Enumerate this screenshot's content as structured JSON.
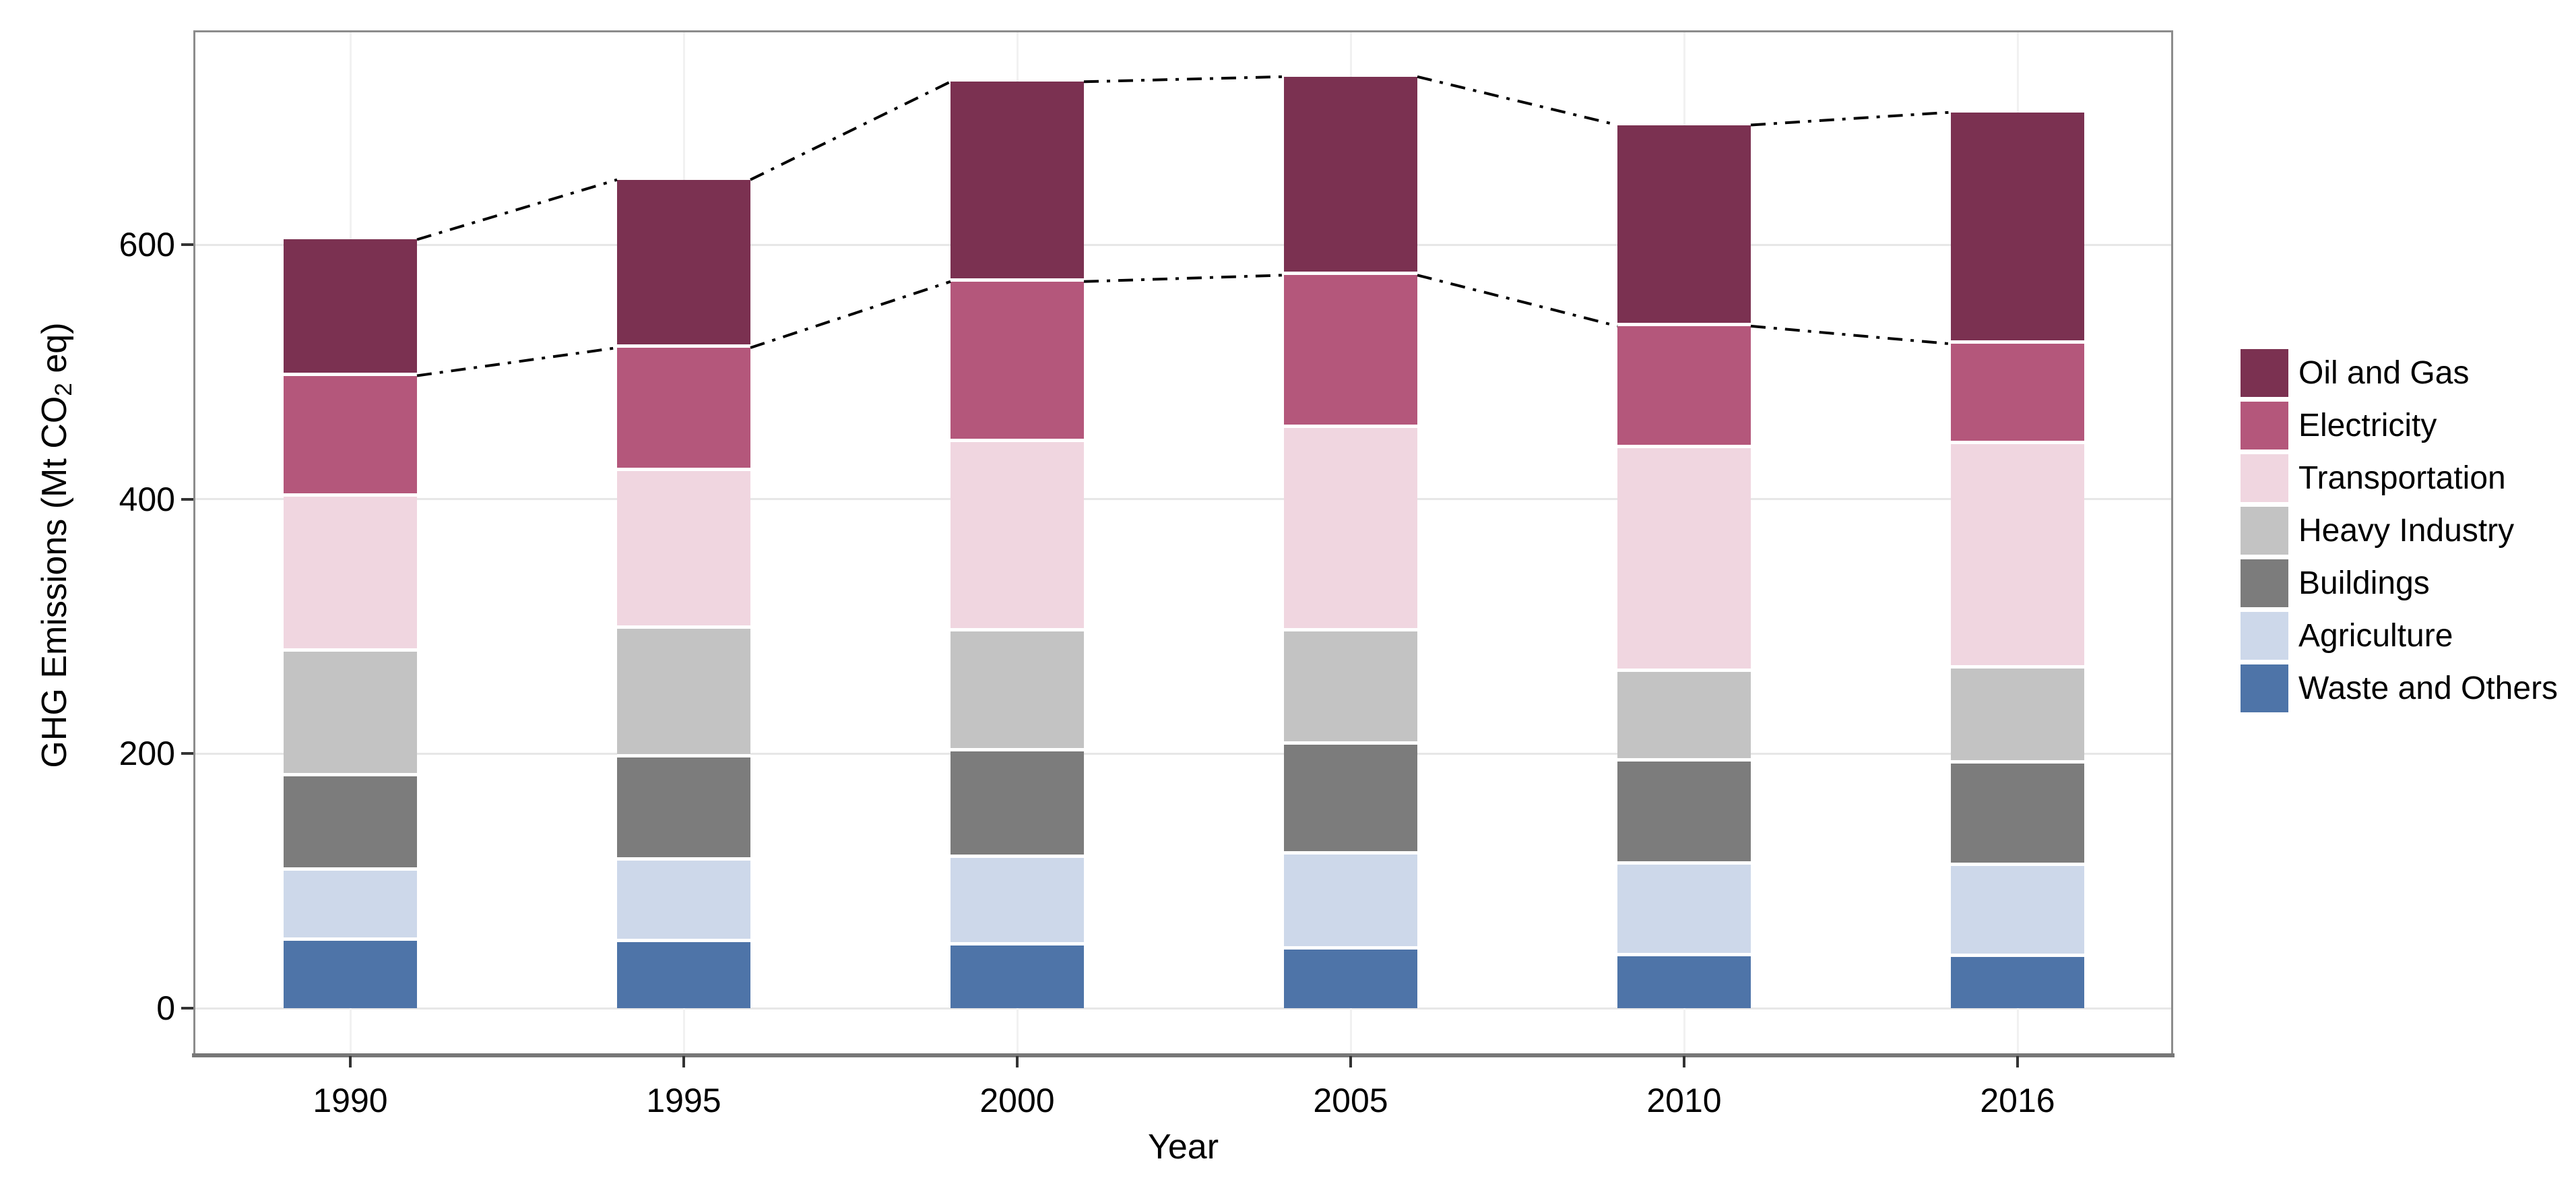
{
  "figure": {
    "y_axis": {
      "title_prefix": "GHG Emissions (Mt CO",
      "title_sub": "2",
      "title_suffix": " eq)",
      "tick_labels": [
        "0",
        "200",
        "400",
        "600"
      ],
      "tick_values": [
        0,
        200,
        400,
        600
      ]
    },
    "x_axis": {
      "title": "Year",
      "tick_labels": [
        "1990",
        "1995",
        "2000",
        "2005",
        "2010",
        "2016"
      ]
    }
  },
  "legend": {
    "position": "right",
    "items": [
      {
        "label": "Oil and Gas",
        "color": "#7B3151"
      },
      {
        "label": "Electricity",
        "color": "#B4577B"
      },
      {
        "label": "Transportation",
        "color": "#F0D6E0"
      },
      {
        "label": "Heavy Industry",
        "color": "#C3C3C3"
      },
      {
        "label": "Buildings",
        "color": "#7C7C7C"
      },
      {
        "label": "Agriculture",
        "color": "#CDD8EA"
      },
      {
        "label": "Waste and Others",
        "color": "#4E74A8"
      }
    ]
  },
  "chart_data": {
    "type": "bar",
    "stacked": true,
    "title": "",
    "xlabel": "Year",
    "ylabel": "GHG Emissions (Mt CO2 eq)",
    "ylim": [
      0,
      770
    ],
    "grid": true,
    "legend_position": "right",
    "categories": [
      "1990",
      "1995",
      "2000",
      "2005",
      "2010",
      "2016"
    ],
    "series_bottom_to_top": [
      {
        "name": "Waste and Others",
        "color": "#4E74A8",
        "values": [
          53,
          52,
          49,
          46,
          41,
          40
        ]
      },
      {
        "name": "Agriculture",
        "color": "#CDD8EA",
        "values": [
          55,
          64,
          69,
          75,
          72,
          72
        ]
      },
      {
        "name": "Buildings",
        "color": "#7C7C7C",
        "values": [
          74,
          81,
          84,
          86,
          81,
          80
        ]
      },
      {
        "name": "Heavy Industry",
        "color": "#C3C3C3",
        "values": [
          98,
          101,
          94,
          89,
          70,
          75
        ]
      },
      {
        "name": "Transportation",
        "color": "#F0D6E0",
        "values": [
          122,
          124,
          149,
          160,
          176,
          176
        ]
      },
      {
        "name": "Electricity",
        "color": "#B4577B",
        "values": [
          95,
          97,
          126,
          120,
          96,
          79
        ]
      },
      {
        "name": "Oil and Gas",
        "color": "#7B3151",
        "values": [
          107,
          132,
          157,
          156,
          158,
          182
        ]
      }
    ],
    "totals": [
      604,
      651,
      728,
      732,
      694,
      704
    ],
    "totals_excluding_oil_and_gas": [
      497,
      519,
      571,
      576,
      536,
      522
    ],
    "overlay_lines": [
      {
        "name": "total-emissions-trend",
        "style": "dash-dot",
        "color": "#000000",
        "connects": "tops of stacked bars"
      },
      {
        "name": "total-excluding-oil-and-gas-trend",
        "style": "dash-dot",
        "color": "#000000",
        "connects": "oil-and-gas lower boundary between bars"
      }
    ]
  }
}
